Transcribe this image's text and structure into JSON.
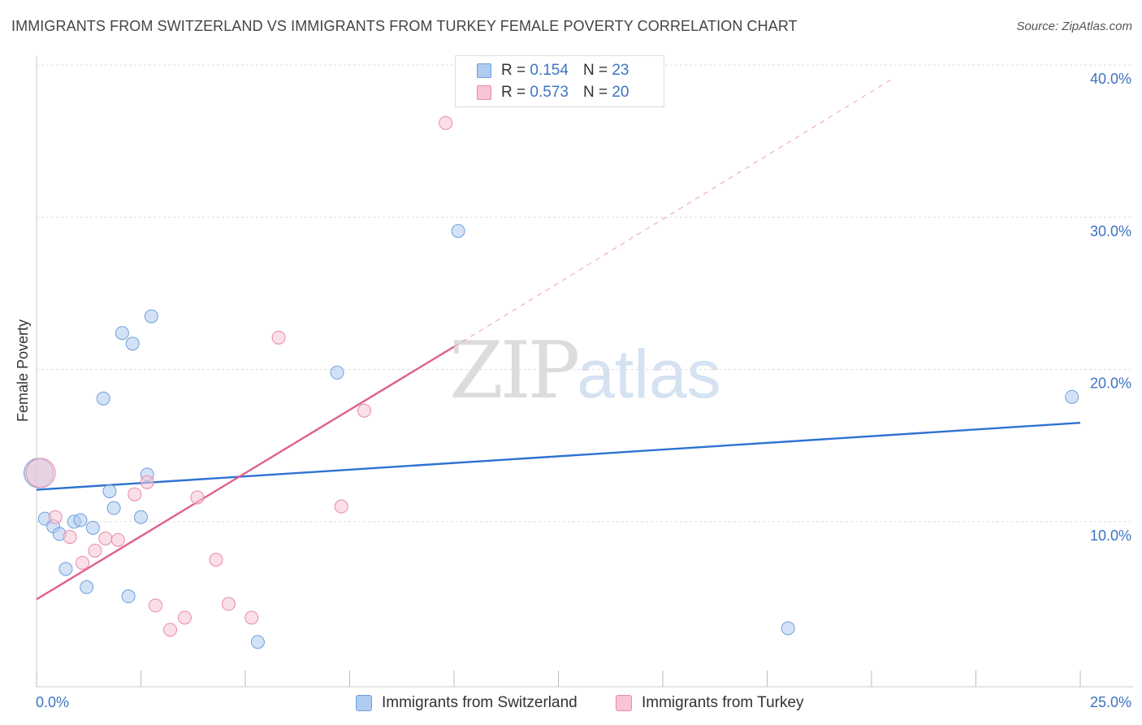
{
  "header": {
    "title": "IMMIGRANTS FROM SWITZERLAND VS IMMIGRANTS FROM TURKEY FEMALE POVERTY CORRELATION CHART",
    "source": "Source: ZipAtlas.com"
  },
  "watermark": {
    "zip": "ZIP",
    "atlas": "atlas"
  },
  "legend": {
    "series1": {
      "r_label": "R =",
      "r_value": "0.154",
      "n_label": "N =",
      "n_value": "23",
      "color": "#aecbf0",
      "border": "#6e9fd8"
    },
    "series2": {
      "r_label": "R =",
      "r_value": "0.573",
      "n_label": "N =",
      "n_value": "20",
      "color": "#f8c4d3",
      "border": "#e88aa8"
    }
  },
  "bottom_legend": {
    "series1_label": "Immigrants from Switzerland",
    "series2_label": "Immigrants from Turkey"
  },
  "chart_data": {
    "type": "scatter",
    "title": "IMMIGRANTS FROM SWITZERLAND VS IMMIGRANTS FROM TURKEY FEMALE POVERTY CORRELATION CHART",
    "xlabel": "",
    "ylabel": "Female Poverty",
    "xlim": [
      0,
      25
    ],
    "ylim": [
      0,
      40
    ],
    "x_tick_labels": [
      "0.0%",
      "25.0%"
    ],
    "y_ticks": [
      10,
      20,
      30,
      40
    ],
    "y_tick_labels": [
      "10.0%",
      "20.0%",
      "30.0%",
      "40.0%"
    ],
    "series": [
      {
        "name": "Immigrants from Switzerland",
        "color": "#6e9fd8",
        "fill": "#aecbf0",
        "line_color": "#2e72d2",
        "trend": {
          "x": [
            0,
            25
          ],
          "y": [
            13.0,
            17.4
          ]
        },
        "points": [
          {
            "x": 0.05,
            "y": 14.1,
            "big": true
          },
          {
            "x": 0.2,
            "y": 11.1
          },
          {
            "x": 0.4,
            "y": 10.6
          },
          {
            "x": 0.55,
            "y": 10.1
          },
          {
            "x": 0.7,
            "y": 7.8
          },
          {
            "x": 0.9,
            "y": 10.9
          },
          {
            "x": 1.05,
            "y": 11.0
          },
          {
            "x": 1.2,
            "y": 6.6
          },
          {
            "x": 1.35,
            "y": 10.5
          },
          {
            "x": 1.6,
            "y": 19.0
          },
          {
            "x": 1.75,
            "y": 12.9
          },
          {
            "x": 1.85,
            "y": 11.8
          },
          {
            "x": 2.05,
            "y": 23.3
          },
          {
            "x": 2.2,
            "y": 6.0
          },
          {
            "x": 2.3,
            "y": 22.6
          },
          {
            "x": 2.5,
            "y": 11.2
          },
          {
            "x": 2.65,
            "y": 14.0
          },
          {
            "x": 2.75,
            "y": 24.4
          },
          {
            "x": 5.3,
            "y": 3.0
          },
          {
            "x": 7.2,
            "y": 20.7
          },
          {
            "x": 10.1,
            "y": 30.0
          },
          {
            "x": 18.0,
            "y": 3.9
          },
          {
            "x": 24.8,
            "y": 19.1
          }
        ]
      },
      {
        "name": "Immigrants from Turkey",
        "color": "#e88aa8",
        "fill": "#f8c4d3",
        "line_color": "#e0608a",
        "trend": {
          "x": [
            0,
            10.0
          ],
          "y": [
            5.8,
            22.4
          ]
        },
        "trend_dashed": {
          "x": [
            10.0,
            20.5
          ],
          "y": [
            22.4,
            40.0
          ]
        },
        "points": [
          {
            "x": 0.1,
            "y": 14.1,
            "big": true
          },
          {
            "x": 0.45,
            "y": 11.2
          },
          {
            "x": 0.8,
            "y": 9.9
          },
          {
            "x": 1.1,
            "y": 8.2
          },
          {
            "x": 1.4,
            "y": 9.0
          },
          {
            "x": 1.65,
            "y": 9.8
          },
          {
            "x": 1.95,
            "y": 9.7
          },
          {
            "x": 2.35,
            "y": 12.7
          },
          {
            "x": 2.65,
            "y": 13.5
          },
          {
            "x": 2.85,
            "y": 5.4
          },
          {
            "x": 3.2,
            "y": 3.8
          },
          {
            "x": 3.55,
            "y": 4.6
          },
          {
            "x": 3.85,
            "y": 12.5
          },
          {
            "x": 4.3,
            "y": 8.4
          },
          {
            "x": 4.6,
            "y": 5.5
          },
          {
            "x": 5.15,
            "y": 4.6
          },
          {
            "x": 5.8,
            "y": 23.0
          },
          {
            "x": 7.3,
            "y": 11.9
          },
          {
            "x": 7.85,
            "y": 18.2
          },
          {
            "x": 9.8,
            "y": 37.1
          }
        ]
      }
    ]
  }
}
